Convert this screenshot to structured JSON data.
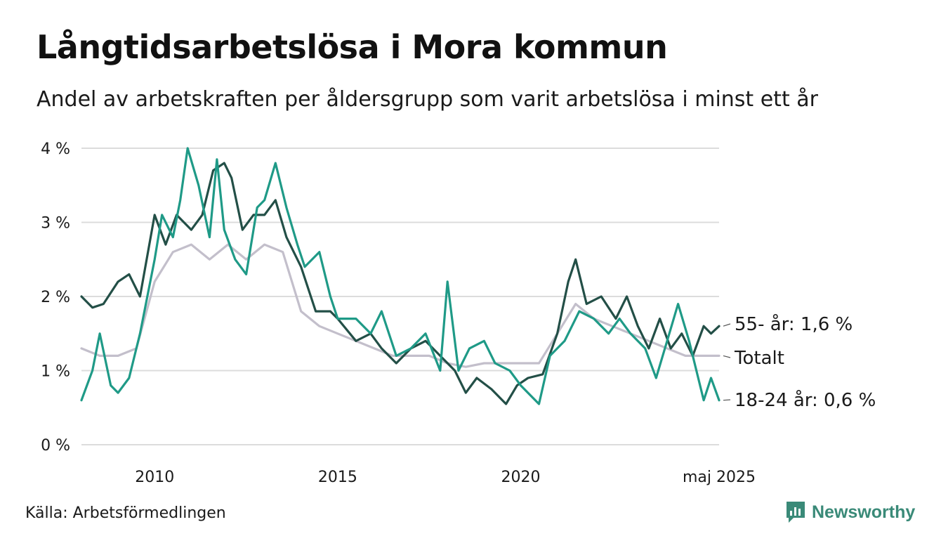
{
  "title": "Långtidsarbetslösa i Mora kommun",
  "subtitle": "Andel av arbetskraften per åldersgrupp som varit arbetslösa i minst ett år",
  "source": "Källa: Arbetsförmedlingen",
  "brand": "Newsworthy",
  "colors": {
    "youth": "#1f9a87",
    "older": "#234f47",
    "total": "#c3bfcb",
    "grid": "#dcdcdc",
    "brand": "#3a8a78"
  },
  "chart_data": {
    "type": "line",
    "x_range": [
      2008.0,
      2025.42
    ],
    "ylim": [
      0,
      4
    ],
    "y_ticks": [
      0,
      1,
      2,
      3,
      4
    ],
    "y_tick_labels": [
      "0 %",
      "1 %",
      "2 %",
      "3 %",
      "4 %"
    ],
    "x_ticks": [
      2010,
      2015,
      2020,
      2025.42
    ],
    "x_tick_labels": [
      "2010",
      "2015",
      "2020",
      "maj 2025"
    ],
    "grid": true,
    "series": [
      {
        "key": "total",
        "label": "Totalt",
        "points": [
          [
            2008.0,
            1.3
          ],
          [
            2008.5,
            1.2
          ],
          [
            2009.0,
            1.2
          ],
          [
            2009.5,
            1.3
          ],
          [
            2010.0,
            2.2
          ],
          [
            2010.5,
            2.6
          ],
          [
            2011.0,
            2.7
          ],
          [
            2011.5,
            2.5
          ],
          [
            2012.0,
            2.7
          ],
          [
            2012.5,
            2.5
          ],
          [
            2013.0,
            2.7
          ],
          [
            2013.5,
            2.6
          ],
          [
            2014.0,
            1.8
          ],
          [
            2014.5,
            1.6
          ],
          [
            2015.0,
            1.5
          ],
          [
            2015.5,
            1.4
          ],
          [
            2016.0,
            1.3
          ],
          [
            2016.5,
            1.2
          ],
          [
            2017.0,
            1.2
          ],
          [
            2017.5,
            1.2
          ],
          [
            2018.0,
            1.1
          ],
          [
            2018.5,
            1.05
          ],
          [
            2019.0,
            1.1
          ],
          [
            2019.5,
            1.1
          ],
          [
            2020.0,
            1.1
          ],
          [
            2020.5,
            1.1
          ],
          [
            2021.0,
            1.5
          ],
          [
            2021.5,
            1.9
          ],
          [
            2022.0,
            1.7
          ],
          [
            2022.5,
            1.6
          ],
          [
            2023.0,
            1.5
          ],
          [
            2023.5,
            1.4
          ],
          [
            2024.0,
            1.3
          ],
          [
            2024.5,
            1.2
          ],
          [
            2025.42,
            1.2
          ]
        ]
      },
      {
        "key": "older",
        "label": "55- år: 1,6 %",
        "points": [
          [
            2008.0,
            2.0
          ],
          [
            2008.3,
            1.85
          ],
          [
            2008.6,
            1.9
          ],
          [
            2009.0,
            2.2
          ],
          [
            2009.3,
            2.3
          ],
          [
            2009.6,
            2.0
          ],
          [
            2010.0,
            3.1
          ],
          [
            2010.3,
            2.7
          ],
          [
            2010.6,
            3.1
          ],
          [
            2011.0,
            2.9
          ],
          [
            2011.3,
            3.1
          ],
          [
            2011.6,
            3.7
          ],
          [
            2011.9,
            3.8
          ],
          [
            2012.1,
            3.6
          ],
          [
            2012.4,
            2.9
          ],
          [
            2012.7,
            3.1
          ],
          [
            2013.0,
            3.1
          ],
          [
            2013.3,
            3.3
          ],
          [
            2013.6,
            2.8
          ],
          [
            2014.0,
            2.4
          ],
          [
            2014.4,
            1.8
          ],
          [
            2014.8,
            1.8
          ],
          [
            2015.0,
            1.7
          ],
          [
            2015.5,
            1.4
          ],
          [
            2015.9,
            1.5
          ],
          [
            2016.2,
            1.3
          ],
          [
            2016.6,
            1.1
          ],
          [
            2017.0,
            1.3
          ],
          [
            2017.4,
            1.4
          ],
          [
            2017.8,
            1.2
          ],
          [
            2018.2,
            1.0
          ],
          [
            2018.5,
            0.7
          ],
          [
            2018.8,
            0.9
          ],
          [
            2019.2,
            0.75
          ],
          [
            2019.6,
            0.55
          ],
          [
            2019.9,
            0.8
          ],
          [
            2020.2,
            0.9
          ],
          [
            2020.6,
            0.95
          ],
          [
            2021.0,
            1.5
          ],
          [
            2021.3,
            2.2
          ],
          [
            2021.5,
            2.5
          ],
          [
            2021.8,
            1.9
          ],
          [
            2022.2,
            2.0
          ],
          [
            2022.6,
            1.7
          ],
          [
            2022.9,
            2.0
          ],
          [
            2023.2,
            1.6
          ],
          [
            2023.5,
            1.3
          ],
          [
            2023.8,
            1.7
          ],
          [
            2024.1,
            1.3
          ],
          [
            2024.4,
            1.5
          ],
          [
            2024.7,
            1.2
          ],
          [
            2025.0,
            1.6
          ],
          [
            2025.2,
            1.5
          ],
          [
            2025.42,
            1.6
          ]
        ]
      },
      {
        "key": "youth",
        "label": "18-24 år: 0,6 %",
        "points": [
          [
            2008.0,
            0.6
          ],
          [
            2008.3,
            1.0
          ],
          [
            2008.5,
            1.5
          ],
          [
            2008.8,
            0.8
          ],
          [
            2009.0,
            0.7
          ],
          [
            2009.3,
            0.9
          ],
          [
            2009.6,
            1.5
          ],
          [
            2010.0,
            2.5
          ],
          [
            2010.2,
            3.1
          ],
          [
            2010.5,
            2.8
          ],
          [
            2010.7,
            3.3
          ],
          [
            2010.9,
            4.0
          ],
          [
            2011.2,
            3.5
          ],
          [
            2011.5,
            2.8
          ],
          [
            2011.7,
            3.85
          ],
          [
            2011.9,
            2.9
          ],
          [
            2012.2,
            2.5
          ],
          [
            2012.5,
            2.3
          ],
          [
            2012.8,
            3.2
          ],
          [
            2013.0,
            3.3
          ],
          [
            2013.3,
            3.8
          ],
          [
            2013.6,
            3.2
          ],
          [
            2013.9,
            2.7
          ],
          [
            2014.1,
            2.4
          ],
          [
            2014.5,
            2.6
          ],
          [
            2014.8,
            2.0
          ],
          [
            2015.0,
            1.7
          ],
          [
            2015.5,
            1.7
          ],
          [
            2015.9,
            1.5
          ],
          [
            2016.2,
            1.8
          ],
          [
            2016.6,
            1.2
          ],
          [
            2017.0,
            1.3
          ],
          [
            2017.4,
            1.5
          ],
          [
            2017.8,
            1.0
          ],
          [
            2018.0,
            2.2
          ],
          [
            2018.3,
            1.0
          ],
          [
            2018.6,
            1.3
          ],
          [
            2019.0,
            1.4
          ],
          [
            2019.3,
            1.1
          ],
          [
            2019.7,
            1.0
          ],
          [
            2020.0,
            0.8
          ],
          [
            2020.5,
            0.55
          ],
          [
            2020.8,
            1.2
          ],
          [
            2021.2,
            1.4
          ],
          [
            2021.6,
            1.8
          ],
          [
            2022.0,
            1.7
          ],
          [
            2022.4,
            1.5
          ],
          [
            2022.7,
            1.7
          ],
          [
            2023.0,
            1.5
          ],
          [
            2023.4,
            1.3
          ],
          [
            2023.7,
            0.9
          ],
          [
            2024.0,
            1.4
          ],
          [
            2024.3,
            1.9
          ],
          [
            2024.6,
            1.4
          ],
          [
            2024.8,
            1.0
          ],
          [
            2025.0,
            0.6
          ],
          [
            2025.2,
            0.9
          ],
          [
            2025.42,
            0.6
          ]
        ]
      }
    ]
  }
}
